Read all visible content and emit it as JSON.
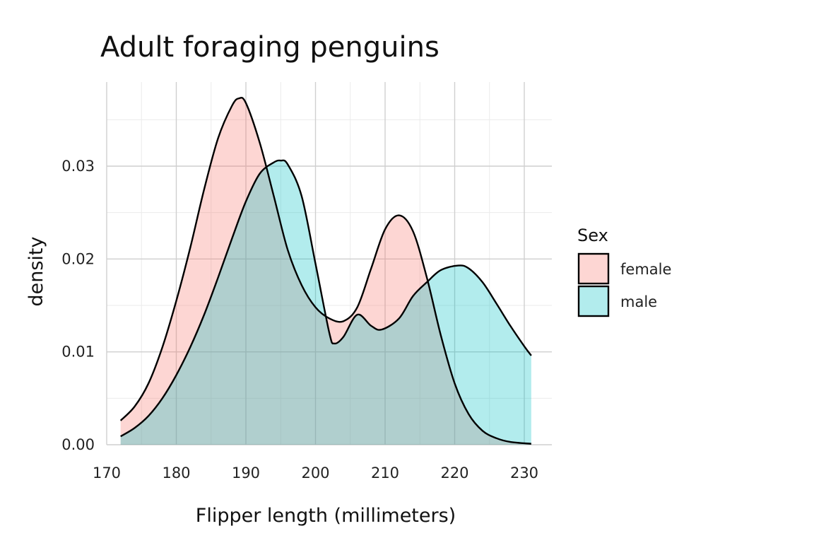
{
  "chart_data": {
    "type": "area",
    "title": "Adult foraging penguins",
    "xlabel": "Flipper length (millimeters)",
    "ylabel": "density",
    "xlim": [
      170,
      232
    ],
    "ylim": [
      0,
      0.038
    ],
    "x_ticks": [
      170,
      180,
      190,
      200,
      210,
      220,
      230
    ],
    "x_tick_labels": [
      "170",
      "180",
      "190",
      "200",
      "210",
      "220",
      "230"
    ],
    "y_ticks": [
      0,
      0.01,
      0.02,
      0.03
    ],
    "y_tick_labels": [
      "0.00",
      "0.01",
      "0.02",
      "0.03"
    ],
    "grid": true,
    "legend": {
      "title": "Sex",
      "position": "right"
    },
    "series": [
      {
        "name": "female",
        "color": "#f8766d",
        "points": [
          [
            172,
            0.0026
          ],
          [
            174,
            0.0041
          ],
          [
            176,
            0.0066
          ],
          [
            178,
            0.0105
          ],
          [
            180,
            0.0155
          ],
          [
            182,
            0.0212
          ],
          [
            184,
            0.0275
          ],
          [
            186,
            0.033
          ],
          [
            188,
            0.0365
          ],
          [
            189,
            0.0373
          ],
          [
            190,
            0.0368
          ],
          [
            192,
            0.0325
          ],
          [
            194,
            0.0268
          ],
          [
            196,
            0.021
          ],
          [
            198,
            0.0172
          ],
          [
            200,
            0.0148
          ],
          [
            202,
            0.0136
          ],
          [
            204,
            0.0133
          ],
          [
            206,
            0.0148
          ],
          [
            208,
            0.019
          ],
          [
            210,
            0.0232
          ],
          [
            212,
            0.0247
          ],
          [
            214,
            0.023
          ],
          [
            216,
            0.018
          ],
          [
            218,
            0.0118
          ],
          [
            220,
            0.0066
          ],
          [
            222,
            0.0033
          ],
          [
            224,
            0.0015
          ],
          [
            226,
            0.0007
          ],
          [
            228,
            0.0003
          ],
          [
            231,
            0.0001
          ]
        ]
      },
      {
        "name": "male",
        "color": "#00bfc4",
        "points": [
          [
            172,
            0.0009
          ],
          [
            174,
            0.0018
          ],
          [
            176,
            0.0031
          ],
          [
            178,
            0.005
          ],
          [
            180,
            0.0075
          ],
          [
            182,
            0.0105
          ],
          [
            184,
            0.014
          ],
          [
            186,
            0.018
          ],
          [
            188,
            0.0222
          ],
          [
            190,
            0.0262
          ],
          [
            192,
            0.0292
          ],
          [
            194,
            0.0304
          ],
          [
            195,
            0.0306
          ],
          [
            196,
            0.0302
          ],
          [
            198,
            0.0268
          ],
          [
            200,
            0.0195
          ],
          [
            202,
            0.012
          ],
          [
            202.7,
            0.0109
          ],
          [
            204,
            0.0116
          ],
          [
            206,
            0.014
          ],
          [
            208,
            0.0128
          ],
          [
            209.5,
            0.0124
          ],
          [
            212,
            0.0136
          ],
          [
            214,
            0.016
          ],
          [
            216,
            0.0175
          ],
          [
            218,
            0.0188
          ],
          [
            220.5,
            0.0193
          ],
          [
            222,
            0.019
          ],
          [
            224,
            0.0175
          ],
          [
            226,
            0.0152
          ],
          [
            228,
            0.0128
          ],
          [
            230,
            0.0106
          ],
          [
            231,
            0.0096
          ]
        ]
      }
    ]
  }
}
